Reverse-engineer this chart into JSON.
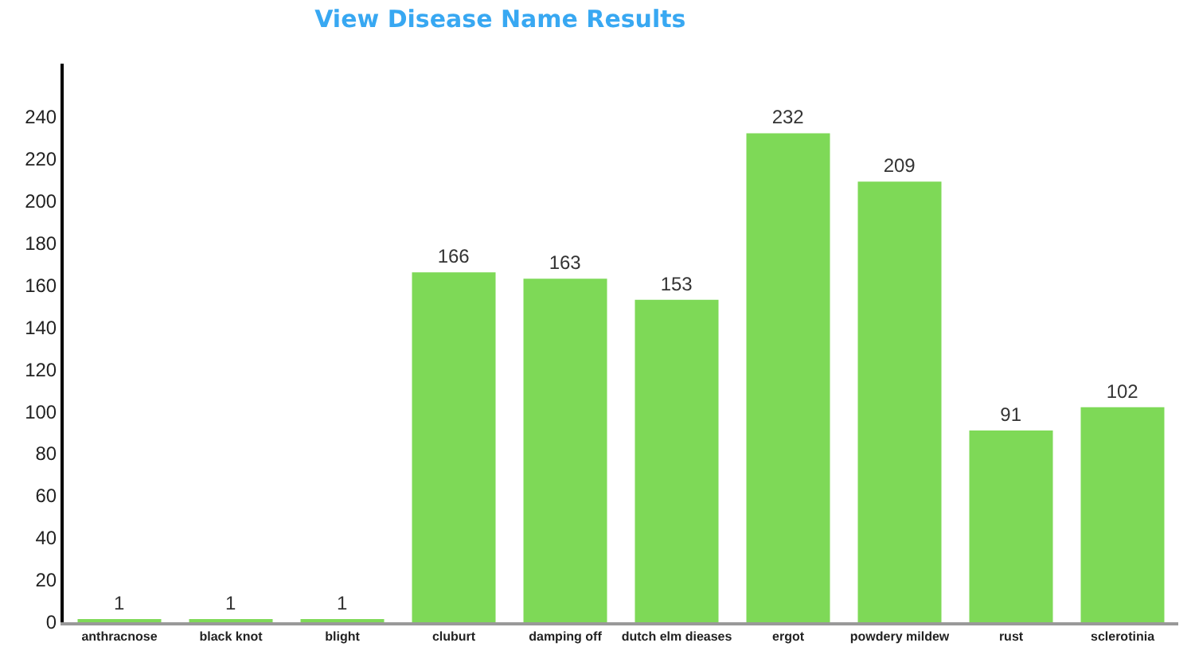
{
  "chart_data": {
    "type": "bar",
    "title": "View Disease Name Results",
    "categories": [
      "anthracnose",
      "black knot",
      "blight",
      "cluburt",
      "damping off",
      "dutch elm dieases",
      "ergot",
      "powdery mildew",
      "rust",
      "sclerotinia"
    ],
    "values": [
      1,
      1,
      1,
      166,
      163,
      153,
      232,
      209,
      91,
      102
    ],
    "color": "#7ed957",
    "ylim": [
      0,
      265
    ],
    "yticks": [
      0,
      20,
      40,
      60,
      80,
      100,
      120,
      140,
      160,
      180,
      200,
      220,
      240
    ],
    "grid": false,
    "legend": false,
    "data_labels": true
  }
}
